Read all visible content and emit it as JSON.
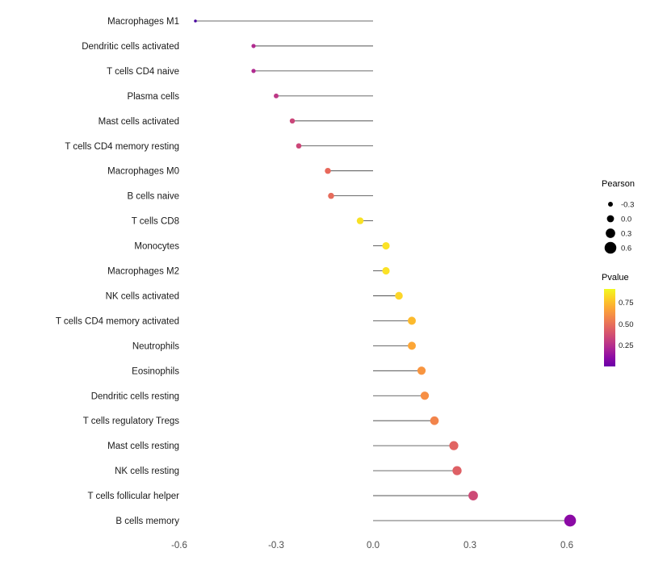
{
  "chart_data": {
    "type": "lollipop",
    "title": "",
    "xlabel": "",
    "ylabel": "",
    "x_ticks": [
      -0.6,
      -0.3,
      0.0,
      0.3,
      0.6
    ],
    "x_tick_labels": [
      "-0.6",
      "-0.3",
      "0.0",
      "0.3",
      "0.6"
    ],
    "xlim": [
      -0.66,
      0.72
    ],
    "grid": false,
    "legend_position": "right",
    "encoding": {
      "x": "pearson_correlation",
      "size": "pearson_correlation",
      "color": "pvalue"
    },
    "points": [
      {
        "label": "Macrophages M1",
        "pearson": -0.55,
        "pvalue": 0.1,
        "color": "#47039f"
      },
      {
        "label": "Dendritic cells activated",
        "pearson": -0.37,
        "pvalue": 0.4,
        "color": "#b12a90"
      },
      {
        "label": "T cells CD4 naive",
        "pearson": -0.37,
        "pvalue": 0.4,
        "color": "#b12a90"
      },
      {
        "label": "Plasma cells",
        "pearson": -0.3,
        "pvalue": 0.45,
        "color": "#bd3786"
      },
      {
        "label": "Mast cells activated",
        "pearson": -0.25,
        "pvalue": 0.49,
        "color": "#ca4679"
      },
      {
        "label": "T cells CD4 memory resting",
        "pearson": -0.23,
        "pvalue": 0.5,
        "color": "#cc4778"
      },
      {
        "label": "Macrophages M0",
        "pearson": -0.14,
        "pvalue": 0.64,
        "color": "#e8685b"
      },
      {
        "label": "B cells naive",
        "pearson": -0.13,
        "pvalue": 0.63,
        "color": "#e66c5c"
      },
      {
        "label": "T cells CD8",
        "pearson": -0.04,
        "pvalue": 0.93,
        "color": "#f8e125"
      },
      {
        "label": "Monocytes",
        "pearson": 0.04,
        "pvalue": 0.94,
        "color": "#fbe226"
      },
      {
        "label": "Macrophages M2",
        "pearson": 0.04,
        "pvalue": 0.94,
        "color": "#fbe226"
      },
      {
        "label": "NK cells activated",
        "pearson": 0.08,
        "pvalue": 0.91,
        "color": "#fcd62a"
      },
      {
        "label": "T cells CD4 memory activated",
        "pearson": 0.12,
        "pvalue": 0.85,
        "color": "#fcba2d"
      },
      {
        "label": "Neutrophils",
        "pearson": 0.12,
        "pvalue": 0.8,
        "color": "#fca636"
      },
      {
        "label": "Eosinophils",
        "pearson": 0.15,
        "pvalue": 0.76,
        "color": "#f89540"
      },
      {
        "label": "Dendritic cells resting",
        "pearson": 0.16,
        "pvalue": 0.74,
        "color": "#f78f44"
      },
      {
        "label": "T cells regulatory Tregs",
        "pearson": 0.19,
        "pvalue": 0.7,
        "color": "#f2844b"
      },
      {
        "label": "Mast cells resting",
        "pearson": 0.25,
        "pvalue": 0.6,
        "color": "#e16462"
      },
      {
        "label": "NK cells resting",
        "pearson": 0.26,
        "pvalue": 0.58,
        "color": "#de6065"
      },
      {
        "label": "T cells follicular helper",
        "pearson": 0.31,
        "pvalue": 0.51,
        "color": "#cd4a76"
      },
      {
        "label": "B cells memory",
        "pearson": 0.61,
        "pvalue": 0.27,
        "color": "#8b0aa5"
      }
    ],
    "legend": {
      "size": {
        "title": "Pearson",
        "dot_color": "#000000",
        "entries": [
          {
            "label": "-0.3",
            "value": -0.3
          },
          {
            "label": "0.0",
            "value": 0.0
          },
          {
            "label": "0.3",
            "value": 0.3
          },
          {
            "label": "0.6",
            "value": 0.6
          }
        ]
      },
      "color": {
        "title": "Pvalue",
        "tick_labels": [
          "0.75",
          "0.50",
          "0.25"
        ],
        "gradient_top_to_bottom": [
          "#f0f921",
          "#fcce25",
          "#fca636",
          "#f2844b",
          "#e16462",
          "#cc4778",
          "#b12a90",
          "#8f0da4",
          "#6a00a8"
        ]
      }
    },
    "colors": {
      "stem": "#3a3a3a",
      "axis_text": "#4d4d4d",
      "category_text": "#1a1a1a",
      "legend_title_text": "#000000",
      "legend_label_text": "#1a1a1a",
      "background": "#ffffff"
    }
  }
}
